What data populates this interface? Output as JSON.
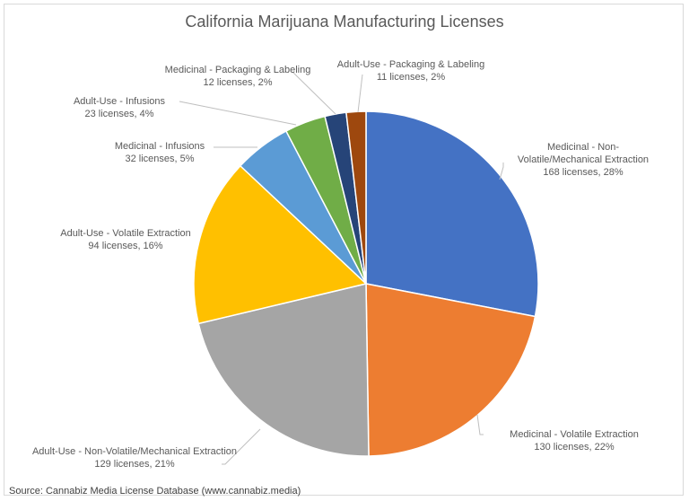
{
  "chart_data": {
    "type": "pie",
    "title": "California Marijuana Manufacturing Licenses",
    "source": "Source: Cannabiz Media License Database (www.cannabiz.media)",
    "slices": [
      {
        "name": "Medicinal - Non-Volatile/Mechanical Extraction",
        "label_lines": [
          "Medicinal - Non-",
          "Volatile/Mechanical Extraction",
          "168 licenses, 28%"
        ],
        "value": 168,
        "percent": 28,
        "color": "#4472C4"
      },
      {
        "name": "Medicinal - Volatile Extraction",
        "label_lines": [
          "Medicinal - Volatile Extraction",
          "130 licenses, 22%"
        ],
        "value": 130,
        "percent": 22,
        "color": "#ED7D31"
      },
      {
        "name": "Adult-Use - Non-Volatile/Mechanical Extraction",
        "label_lines": [
          "Adult-Use - Non-Volatile/Mechanical Extraction",
          "129 licenses, 21%"
        ],
        "value": 129,
        "percent": 21,
        "color": "#A5A5A5"
      },
      {
        "name": "Adult-Use - Volatile Extraction",
        "label_lines": [
          "Adult-Use - Volatile Extraction",
          "94 licenses, 16%"
        ],
        "value": 94,
        "percent": 16,
        "color": "#FFC000"
      },
      {
        "name": "Medicinal - Infusions",
        "label_lines": [
          "Medicinal - Infusions",
          "32 licenses, 5%"
        ],
        "value": 32,
        "percent": 5,
        "color": "#5B9BD5"
      },
      {
        "name": "Adult-Use - Infusions",
        "label_lines": [
          "Adult-Use - Infusions",
          "23 licenses, 4%"
        ],
        "value": 23,
        "percent": 4,
        "color": "#70AD47"
      },
      {
        "name": "Medicinal - Packaging & Labeling",
        "label_lines": [
          "Medicinal - Packaging & Labeling",
          "12 licenses, 2%"
        ],
        "value": 12,
        "percent": 2,
        "color": "#264478"
      },
      {
        "name": "Adult-Use - Packaging & Labeling",
        "label_lines": [
          "Adult-Use - Packaging & Labeling",
          "11 licenses, 2%"
        ],
        "value": 11,
        "percent": 2,
        "color": "#9E480E"
      }
    ],
    "legend": "none",
    "start": "top, clockwise"
  }
}
